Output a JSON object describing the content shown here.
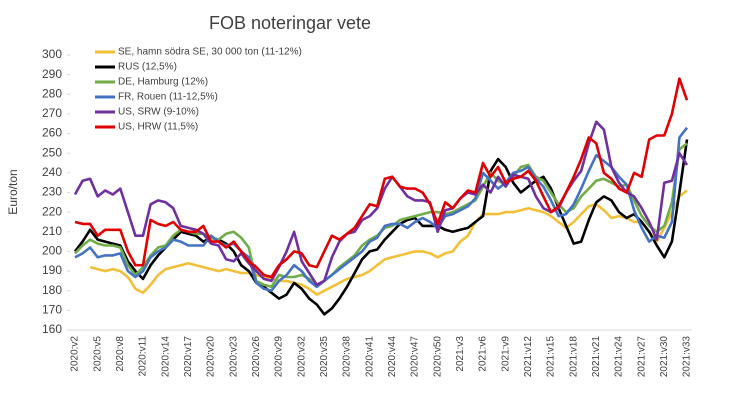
{
  "chart_data": {
    "type": "line",
    "title": "FOB noteringar vete",
    "y_label": "Euro/ton",
    "categories": [
      "2020:v2",
      null,
      null,
      "2020:v5",
      null,
      null,
      "2020:v8",
      null,
      null,
      "2020:v11",
      null,
      null,
      "2020:v14",
      null,
      null,
      "2020:v17",
      null,
      null,
      "2020:v20",
      null,
      null,
      "2020:v23",
      null,
      null,
      "2020:v26",
      null,
      null,
      "2020:v29",
      null,
      null,
      "2020:v32",
      null,
      null,
      "2020:v35",
      null,
      null,
      "2020:v38",
      null,
      null,
      "2020:v41",
      null,
      null,
      "2020:v44",
      null,
      null,
      "2020:v47",
      null,
      null,
      "2020:v50",
      null,
      null,
      "2021:v3",
      null,
      null,
      "2021:v6",
      null,
      null,
      "2021:v9",
      null,
      null,
      "2021:v12",
      null,
      null,
      "2021:v15",
      null,
      null,
      "2021:v18",
      null,
      null,
      "2021:v21",
      null,
      null,
      "2021:v24",
      null,
      null,
      "2021:v27",
      null,
      null,
      "2021:v30",
      null,
      null,
      "2021:v33"
    ],
    "series": [
      {
        "name": "SE, hamn södra SE, 30 000 ton (11-12%)",
        "color": "#f2c038",
        "values": [
          null,
          null,
          192,
          191,
          190,
          191,
          190,
          187,
          181,
          179,
          183,
          188,
          191,
          192,
          193,
          194,
          193,
          192,
          191,
          190,
          191,
          190,
          189,
          189,
          188,
          187,
          186,
          185,
          185,
          184,
          183,
          181,
          178,
          180,
          182,
          184,
          186,
          187,
          188,
          190,
          193,
          196,
          197,
          198,
          199,
          200,
          200,
          199,
          197,
          199,
          200,
          205,
          208,
          215,
          219,
          219,
          219,
          220,
          220,
          221,
          222,
          221,
          220,
          218,
          215,
          212,
          215,
          219,
          223,
          224,
          221,
          217,
          218,
          217,
          215,
          215,
          210,
          205,
          212,
          220,
          228,
          231
        ]
      },
      {
        "name": "RUS (12,5%)",
        "color": "#000000",
        "values": [
          200,
          205,
          211,
          206,
          205,
          204,
          203,
          195,
          190,
          186,
          193,
          198,
          202,
          206,
          210,
          209,
          208,
          205,
          207,
          206,
          204,
          200,
          193,
          190,
          184,
          182,
          179,
          176,
          178,
          184,
          181,
          176,
          173,
          168,
          171,
          176,
          182,
          189,
          196,
          200,
          201,
          206,
          210,
          214,
          216,
          217,
          213,
          213,
          213,
          211,
          210,
          211,
          212,
          215,
          218,
          241,
          247,
          243,
          235,
          230,
          233,
          236,
          238,
          232,
          222,
          213,
          204,
          205,
          216,
          225,
          228,
          226,
          220,
          217,
          219,
          215,
          210,
          203,
          197,
          205,
          230,
          257
        ]
      },
      {
        "name": "DE, Hamburg (12%)",
        "color": "#70ad47",
        "values": [
          199,
          203,
          206,
          204,
          203,
          203,
          202,
          193,
          188,
          192,
          198,
          202,
          203,
          208,
          211,
          210,
          209,
          209,
          207,
          206,
          209,
          210,
          207,
          202,
          185,
          183,
          182,
          188,
          187,
          187,
          188,
          186,
          183,
          185,
          188,
          192,
          195,
          198,
          203,
          206,
          208,
          212,
          213,
          216,
          217,
          218,
          219,
          220,
          220,
          219,
          220,
          222,
          224,
          226,
          233,
          240,
          236,
          234,
          238,
          243,
          244,
          238,
          236,
          230,
          224,
          220,
          222,
          228,
          232,
          236,
          237,
          235,
          233,
          234,
          226,
          218,
          213,
          210,
          213,
          225,
          252,
          255
        ]
      },
      {
        "name": "FR, Rouen (11-12,5%)",
        "color": "#4472c4",
        "values": [
          197,
          199,
          202,
          197,
          198,
          198,
          199,
          190,
          187,
          190,
          197,
          200,
          202,
          206,
          205,
          203,
          203,
          203,
          208,
          205,
          203,
          204,
          200,
          197,
          184,
          181,
          180,
          185,
          188,
          193,
          190,
          185,
          182,
          185,
          188,
          191,
          194,
          197,
          200,
          205,
          207,
          213,
          214,
          214,
          212,
          215,
          217,
          215,
          212,
          218,
          219,
          221,
          223,
          227,
          240,
          236,
          232,
          235,
          240,
          241,
          243,
          237,
          233,
          226,
          218,
          219,
          224,
          232,
          241,
          249,
          246,
          243,
          238,
          234,
          221,
          212,
          205,
          208,
          207,
          215,
          258,
          263
        ]
      },
      {
        "name": "US, SRW (9-10%)",
        "color": "#7030a0",
        "values": [
          229,
          236,
          237,
          228,
          231,
          229,
          232,
          220,
          208,
          208,
          224,
          226,
          225,
          222,
          213,
          212,
          211,
          209,
          204,
          203,
          196,
          195,
          199,
          194,
          190,
          186,
          185,
          192,
          200,
          210,
          195,
          189,
          183,
          185,
          197,
          205,
          209,
          210,
          216,
          218,
          222,
          232,
          238,
          233,
          228,
          226,
          226,
          225,
          210,
          221,
          222,
          227,
          230,
          229,
          234,
          230,
          238,
          233,
          239,
          238,
          237,
          228,
          222,
          220,
          222,
          230,
          236,
          241,
          255,
          266,
          262,
          243,
          235,
          230,
          228,
          222,
          215,
          206,
          235,
          236,
          250,
          244
        ]
      },
      {
        "name": "US, HRW (11,5%)",
        "color": "#e00000",
        "values": [
          215,
          214,
          214,
          208,
          211,
          211,
          211,
          200,
          193,
          193,
          216,
          214,
          213,
          215,
          211,
          210,
          210,
          213,
          205,
          205,
          202,
          205,
          200,
          195,
          192,
          188,
          187,
          193,
          196,
          200,
          199,
          193,
          192,
          200,
          208,
          206,
          209,
          212,
          218,
          224,
          223,
          237,
          238,
          233,
          232,
          232,
          230,
          224,
          214,
          225,
          222,
          227,
          231,
          230,
          245,
          238,
          243,
          235,
          237,
          238,
          241,
          236,
          228,
          220,
          223,
          230,
          238,
          247,
          258,
          255,
          240,
          237,
          232,
          230,
          240,
          238,
          257,
          259,
          259,
          270,
          288,
          277
        ]
      }
    ],
    "ylim": [
      160,
      300
    ],
    "yticks": [
      160,
      170,
      180,
      190,
      200,
      210,
      220,
      230,
      240,
      250,
      260,
      270,
      280,
      290,
      300
    ],
    "grid": false
  }
}
